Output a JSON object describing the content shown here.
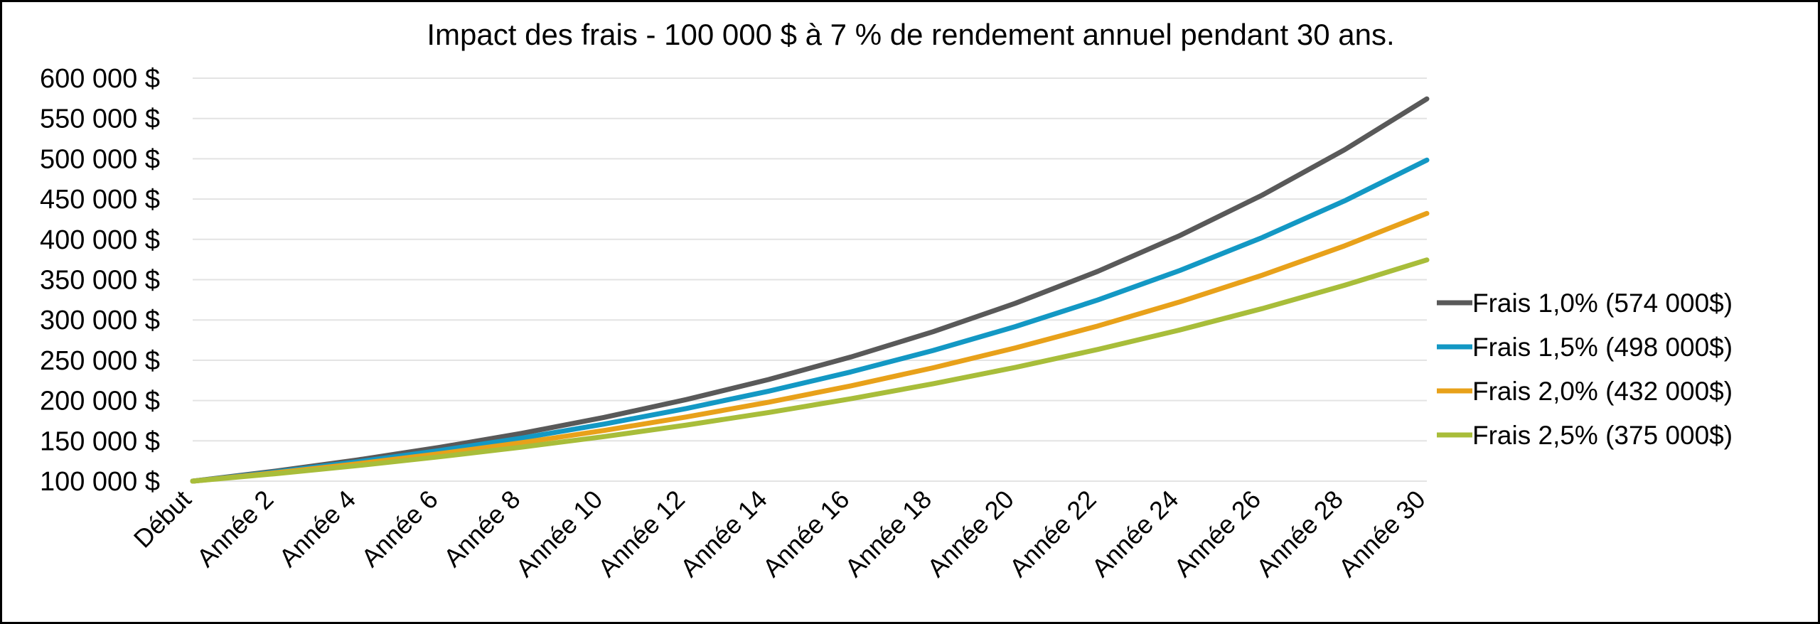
{
  "chart_data": {
    "type": "line",
    "title": "Impact des frais - 100 000 $ à 7 % de rendement annuel pendant 30 ans.",
    "xlabel": "",
    "ylabel": "",
    "ylim": [
      100000,
      600000
    ],
    "yticks": [
      100000,
      150000,
      200000,
      250000,
      300000,
      350000,
      400000,
      450000,
      500000,
      550000,
      600000
    ],
    "ytick_labels": [
      "100 000  $",
      "150 000  $",
      "200 000  $",
      "250 000  $",
      "300 000  $",
      "350 000  $",
      "400 000  $",
      "450 000  $",
      "500 000  $",
      "550 000  $",
      "600 000  $"
    ],
    "x": [
      0,
      2,
      4,
      6,
      8,
      10,
      12,
      14,
      16,
      18,
      20,
      22,
      24,
      26,
      28,
      30
    ],
    "x_labels": [
      "Début",
      "Année 2",
      "Année 4",
      "Année 6",
      "Année 8",
      "Année 10",
      "Année 12",
      "Année 14",
      "Année 16",
      "Année 18",
      "Année 20",
      "Année 22",
      "Année 24",
      "Année 26",
      "Année 28",
      "Année 30"
    ],
    "grid": true,
    "legend": "right",
    "series": [
      {
        "name": "Frais 1,0% (574 000$)",
        "color": "#595959",
        "values": [
          100000,
          112360,
          126248,
          141852,
          159385,
          179085,
          201220,
          226091,
          254035,
          285434,
          320714,
          360354,
          404893,
          454937,
          511167,
          574349
        ]
      },
      {
        "name": "Frais 1,5% (498 000$)",
        "color": "#1398c4",
        "values": [
          100000,
          111303,
          123883,
          137884,
          153469,
          170815,
          190121,
          211610,
          235528,
          262149,
          291779,
          324757,
          361463,
          402318,
          447790,
          498403
        ]
      },
      {
        "name": "Frais 2,0% (432 000$)",
        "color": "#e8a11a",
        "values": [
          100000,
          110250,
          121551,
          134010,
          147746,
          162889,
          179586,
          197993,
          218287,
          240662,
          265330,
          292526,
          322510,
          355567,
          392013,
          432194
        ]
      },
      {
        "name": "Frais 2,5% (375 000$)",
        "color": "#a8bd3a",
        "values": [
          100000,
          109203,
          119253,
          130227,
          142213,
          155301,
          169591,
          185199,
          202243,
          220856,
          241181,
          263377,
          287616,
          314085,
          342990,
          374555
        ]
      }
    ]
  }
}
